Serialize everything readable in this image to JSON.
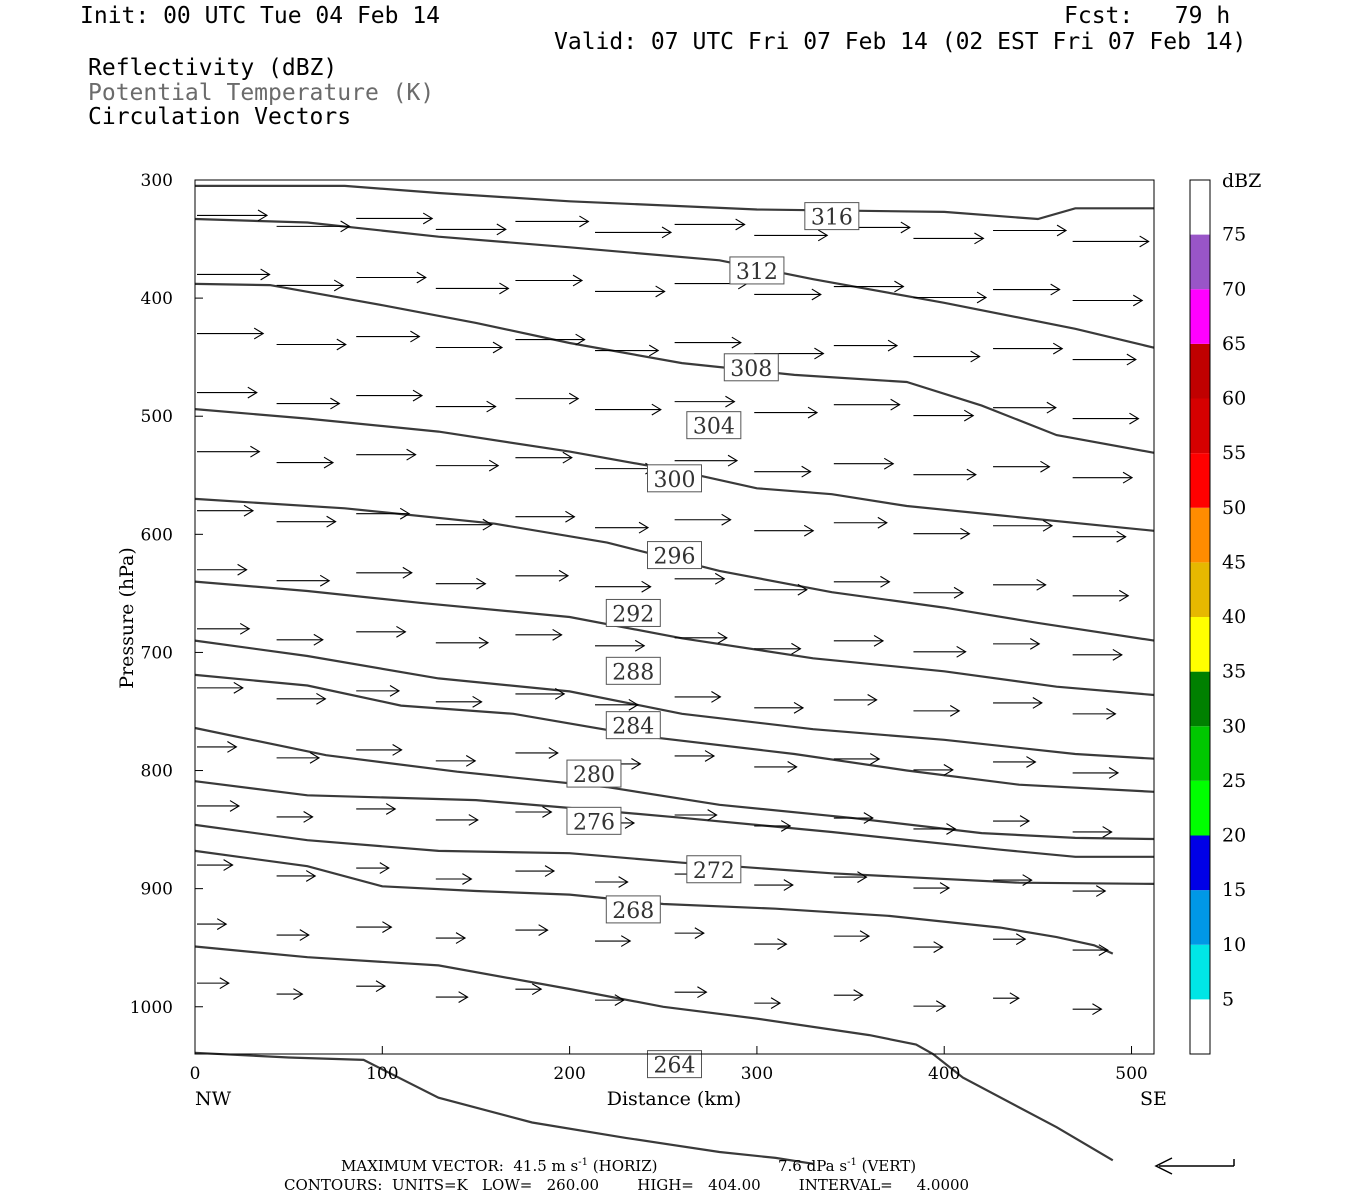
{
  "header": {
    "init": "Init: 00 UTC Tue 04 Feb 14",
    "fcst": "Fcst:   79 h",
    "valid": "Valid: 07 UTC Fri 07 Feb 14 (02 EST Fri 07 Feb 14)",
    "field1": "Reflectivity (dBZ)",
    "field2": "Potential Temperature (K)",
    "field3": "Circulation Vectors"
  },
  "footer": {
    "max_vector_label": "MAXIMUM VECTOR:",
    "max_horiz_value": "41.5 m s",
    "max_horiz_unit": "(HORIZ)",
    "max_vert_value": "7.6 dPa s",
    "max_vert_unit": "(VERT)",
    "exponent": "-1",
    "contours": "CONTOURS:  UNITS=K   LOW=   260.00        HIGH=   404.00        INTERVAL=     4.0000"
  },
  "colors": {
    "contour": "#3a3a3a",
    "dbz_5": "#00e6e6",
    "dbz_10": "#0098e6",
    "dbz_15": "#0000e6",
    "dbz_20": "#00ff00",
    "dbz_25": "#00c800",
    "dbz_30": "#008000",
    "dbz_35": "#ffff00",
    "dbz_40": "#e6b800",
    "dbz_45": "#ff8c00",
    "dbz_50": "#ff0000",
    "dbz_55": "#d60000",
    "dbz_60": "#c00000",
    "dbz_65": "#ff00ff",
    "dbz_70": "#9955c8"
  },
  "chart_data": {
    "type": "contour",
    "xlabel": "Distance (km)",
    "ylabel": "Pressure (hPa)",
    "xlim": [
      0,
      512
    ],
    "ylim": [
      1040,
      300
    ],
    "x_ticks": [
      0,
      100,
      200,
      300,
      400,
      500
    ],
    "y_ticks": [
      300,
      400,
      500,
      600,
      700,
      800,
      900,
      1000
    ],
    "x_end_labels": {
      "left": "NW",
      "right": "SE"
    },
    "colorbar": {
      "title": "dBZ",
      "levels": [
        5,
        10,
        15,
        20,
        25,
        30,
        35,
        40,
        45,
        50,
        55,
        60,
        65,
        70,
        75
      ],
      "color_keys": [
        "dbz_5",
        "dbz_10",
        "dbz_15",
        "dbz_20",
        "dbz_25",
        "dbz_30",
        "dbz_35",
        "dbz_40",
        "dbz_45",
        "dbz_50",
        "dbz_55",
        "dbz_60",
        "dbz_65",
        "dbz_70"
      ]
    },
    "contours": [
      {
        "label": "316",
        "label_at": [
          340,
          331
        ],
        "points": [
          [
            0,
            305
          ],
          [
            80,
            305
          ],
          [
            130,
            311
          ],
          [
            200,
            318
          ],
          [
            300,
            325
          ],
          [
            400,
            327
          ],
          [
            450,
            333
          ],
          [
            470,
            324
          ],
          [
            512,
            324
          ]
        ]
      },
      {
        "label": "312",
        "label_at": [
          300,
          377
        ],
        "points": [
          [
            0,
            333
          ],
          [
            60,
            336
          ],
          [
            130,
            348
          ],
          [
            200,
            357
          ],
          [
            280,
            368
          ],
          [
            330,
            384
          ],
          [
            400,
            404
          ],
          [
            470,
            426
          ],
          [
            512,
            442
          ]
        ]
      },
      {
        "label": "308",
        "label_at": [
          297,
          459
        ],
        "points": [
          [
            0,
            388
          ],
          [
            40,
            389
          ],
          [
            100,
            406
          ],
          [
            150,
            421
          ],
          [
            200,
            438
          ],
          [
            260,
            455
          ],
          [
            320,
            465
          ],
          [
            380,
            471
          ],
          [
            420,
            491
          ],
          [
            460,
            516
          ],
          [
            512,
            531
          ]
        ]
      },
      {
        "label": "304",
        "label_at": [
          277,
          508
        ],
        "points": [
          [
            0,
            494
          ],
          [
            60,
            502
          ],
          [
            130,
            513
          ],
          [
            200,
            530
          ],
          [
            260,
            547
          ],
          [
            300,
            561
          ],
          [
            340,
            566
          ],
          [
            380,
            576
          ],
          [
            430,
            584
          ],
          [
            512,
            597
          ]
        ]
      },
      {
        "label": "300",
        "label_at": [
          256,
          553
        ],
        "points": [
          [
            0,
            570
          ],
          [
            80,
            578
          ],
          [
            160,
            591
          ],
          [
            220,
            607
          ],
          [
            280,
            631
          ],
          [
            340,
            649
          ],
          [
            400,
            662
          ],
          [
            450,
            675
          ],
          [
            512,
            690
          ]
        ]
      },
      {
        "label": "296",
        "label_at": [
          256,
          618
        ],
        "points": [
          [
            0,
            640
          ],
          [
            60,
            648
          ],
          [
            120,
            658
          ],
          [
            200,
            670
          ],
          [
            260,
            688
          ],
          [
            330,
            705
          ],
          [
            400,
            716
          ],
          [
            460,
            729
          ],
          [
            512,
            736
          ]
        ]
      },
      {
        "label": "292",
        "label_at": [
          234,
          667
        ],
        "points": [
          [
            0,
            690
          ],
          [
            60,
            703
          ],
          [
            130,
            722
          ],
          [
            200,
            733
          ],
          [
            260,
            752
          ],
          [
            330,
            765
          ],
          [
            400,
            774
          ],
          [
            470,
            786
          ],
          [
            512,
            790
          ]
        ]
      },
      {
        "label": "288",
        "label_at": [
          234,
          716
        ],
        "points": [
          [
            0,
            719
          ],
          [
            60,
            728
          ],
          [
            110,
            745
          ],
          [
            170,
            752
          ],
          [
            240,
            771
          ],
          [
            320,
            786
          ],
          [
            380,
            800
          ],
          [
            440,
            812
          ],
          [
            512,
            818
          ]
        ]
      },
      {
        "label": "284",
        "label_at": [
          234,
          762
        ],
        "points": [
          [
            0,
            764
          ],
          [
            70,
            787
          ],
          [
            140,
            801
          ],
          [
            220,
            814
          ],
          [
            280,
            829
          ],
          [
            350,
            840
          ],
          [
            420,
            853
          ],
          [
            470,
            857
          ],
          [
            512,
            858
          ]
        ]
      },
      {
        "label": "280",
        "label_at": [
          213,
          803
        ],
        "points": [
          [
            0,
            809
          ],
          [
            60,
            821
          ],
          [
            150,
            825
          ],
          [
            210,
            833
          ],
          [
            260,
            840
          ],
          [
            340,
            852
          ],
          [
            430,
            867
          ],
          [
            470,
            873
          ],
          [
            512,
            873
          ]
        ]
      },
      {
        "label": "276",
        "label_at": [
          213,
          843
        ],
        "points": [
          [
            0,
            846
          ],
          [
            60,
            859
          ],
          [
            130,
            868
          ],
          [
            200,
            870
          ],
          [
            260,
            878
          ],
          [
            340,
            887
          ],
          [
            440,
            895
          ],
          [
            512,
            896
          ]
        ]
      },
      {
        "label": "272",
        "label_at": [
          277,
          884
        ],
        "points": [
          [
            0,
            868
          ],
          [
            60,
            881
          ],
          [
            100,
            898
          ],
          [
            150,
            902
          ],
          [
            200,
            905
          ],
          [
            250,
            913
          ],
          [
            310,
            917
          ],
          [
            370,
            923
          ],
          [
            430,
            933
          ],
          [
            460,
            941
          ],
          [
            480,
            948
          ],
          [
            490,
            955
          ]
        ]
      },
      {
        "label": "268",
        "label_at": [
          234,
          918
        ],
        "points": [
          [
            0,
            949
          ],
          [
            60,
            958
          ],
          [
            130,
            965
          ],
          [
            200,
            985
          ],
          [
            250,
            1000
          ],
          [
            300,
            1010
          ],
          [
            360,
            1024
          ],
          [
            385,
            1032
          ],
          [
            394,
            1040
          ],
          [
            410,
            1060
          ],
          [
            460,
            1102
          ],
          [
            490,
            1130
          ]
        ]
      },
      {
        "label": "264",
        "label_at": [
          256,
          1049
        ],
        "points": [
          [
            0,
            1039
          ],
          [
            50,
            1043
          ],
          [
            90,
            1045
          ],
          [
            130,
            1077
          ],
          [
            180,
            1098
          ],
          [
            230,
            1111
          ],
          [
            280,
            1123
          ],
          [
            310,
            1128
          ],
          [
            330,
            1133
          ]
        ]
      }
    ]
  }
}
